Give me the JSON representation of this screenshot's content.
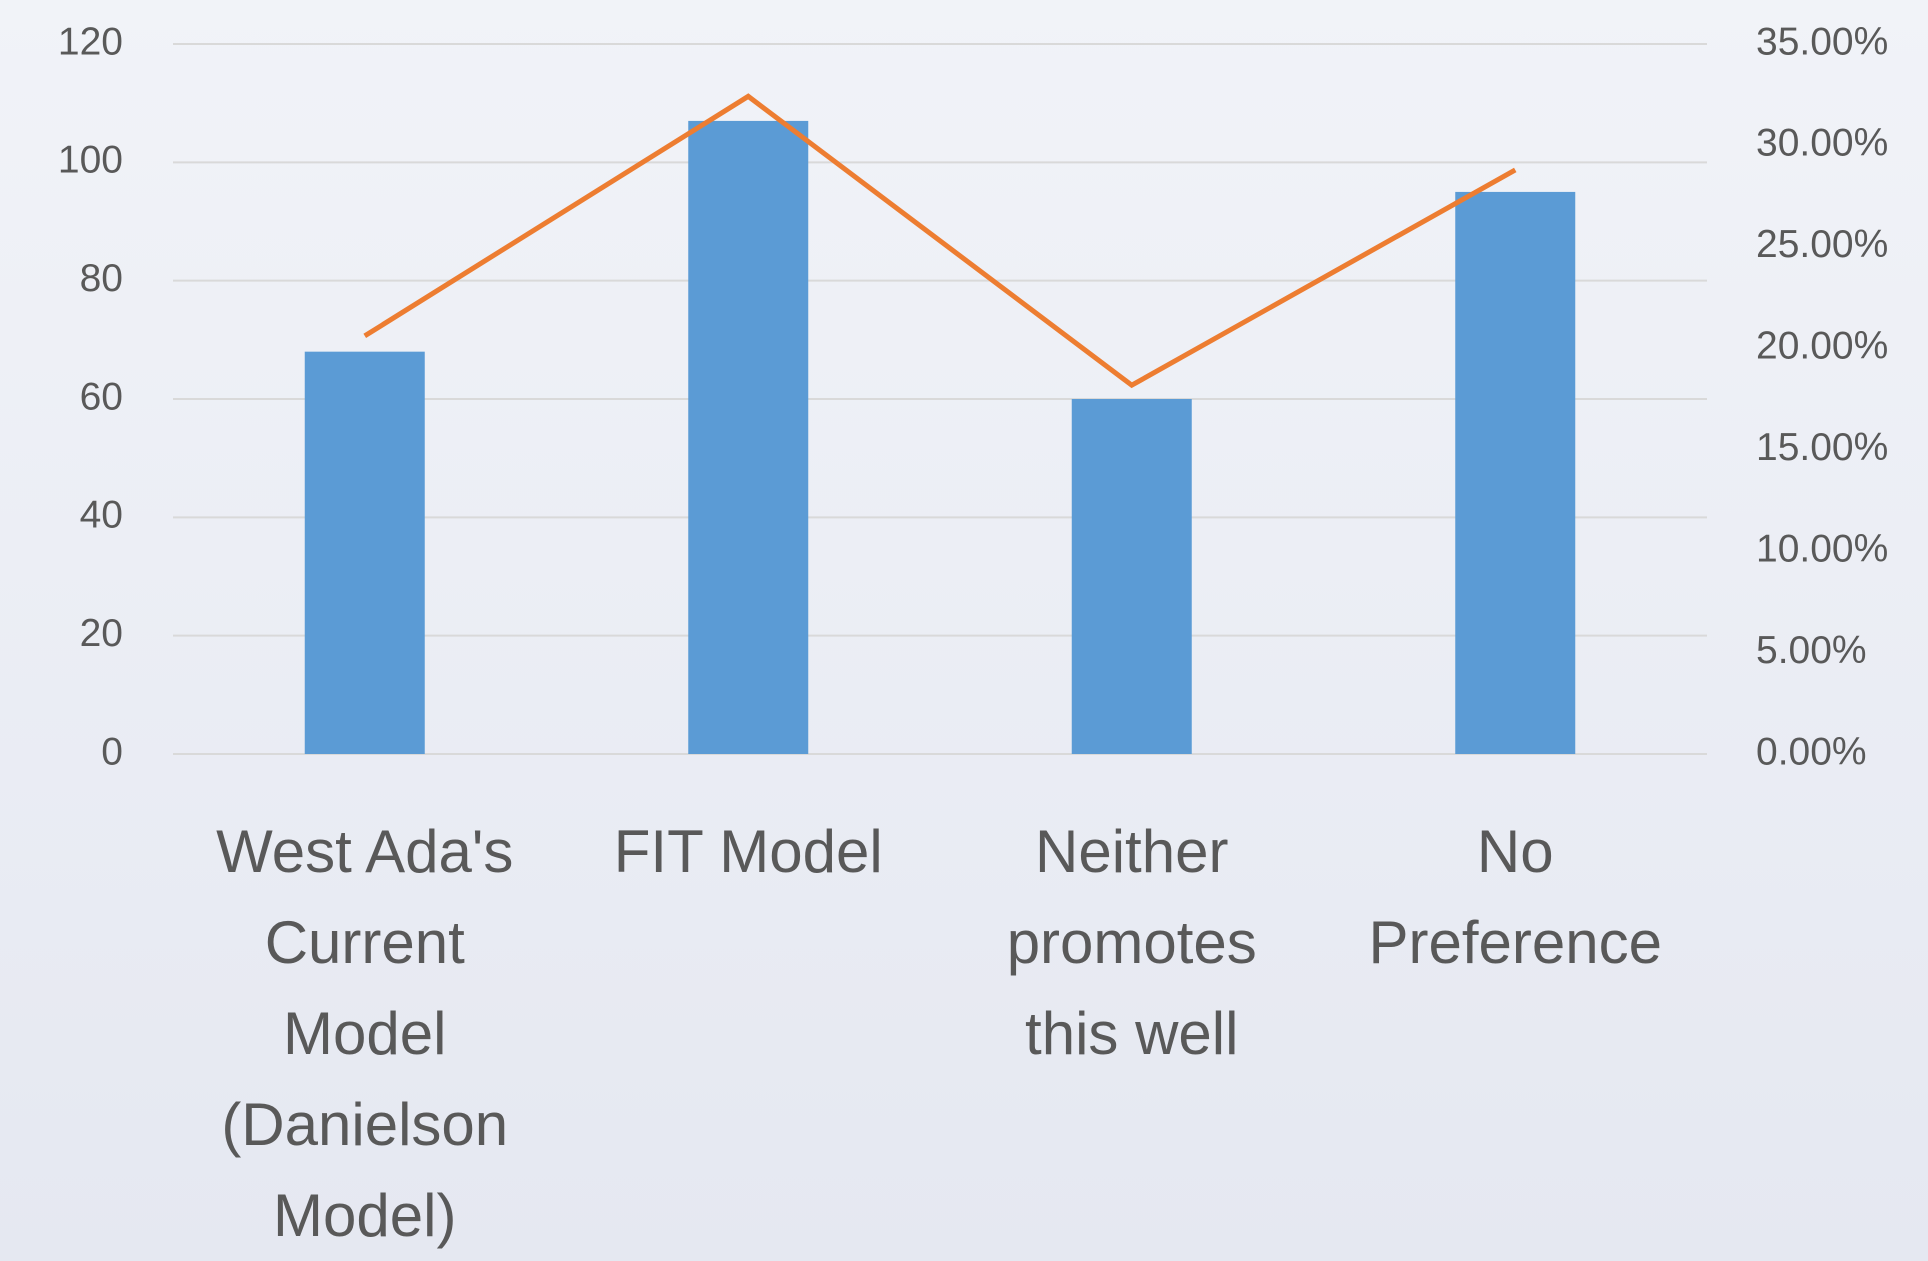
{
  "chart_data": {
    "type": "bar",
    "categories": [
      "West Ada's Current Model (Danielson Model)",
      "FIT Model",
      "Neither promotes this well",
      "No Preference"
    ],
    "series": [
      {
        "type": "bar",
        "color": "#5b9bd5",
        "values": [
          68,
          107,
          60,
          95
        ]
      },
      {
        "type": "line",
        "color": "#ed7d31",
        "axis": "y2",
        "values": [
          20.61,
          32.42,
          18.18,
          28.79
        ]
      }
    ],
    "ylim": [
      0,
      120
    ],
    "yticks": [
      0,
      20,
      40,
      60,
      80,
      100,
      120
    ],
    "y2lim": [
      0,
      35
    ],
    "y2ticks": [
      {
        "value": 0,
        "label": "0.00%"
      },
      {
        "value": 5,
        "label": "5.00%"
      },
      {
        "value": 10,
        "label": "10.00%"
      },
      {
        "value": 15,
        "label": "15.00%"
      },
      {
        "value": 20,
        "label": "20.00%"
      },
      {
        "value": 25,
        "label": "25.00%"
      },
      {
        "value": 30,
        "label": "30.00%"
      },
      {
        "value": 35,
        "label": "35.00%"
      }
    ],
    "grid": true
  }
}
